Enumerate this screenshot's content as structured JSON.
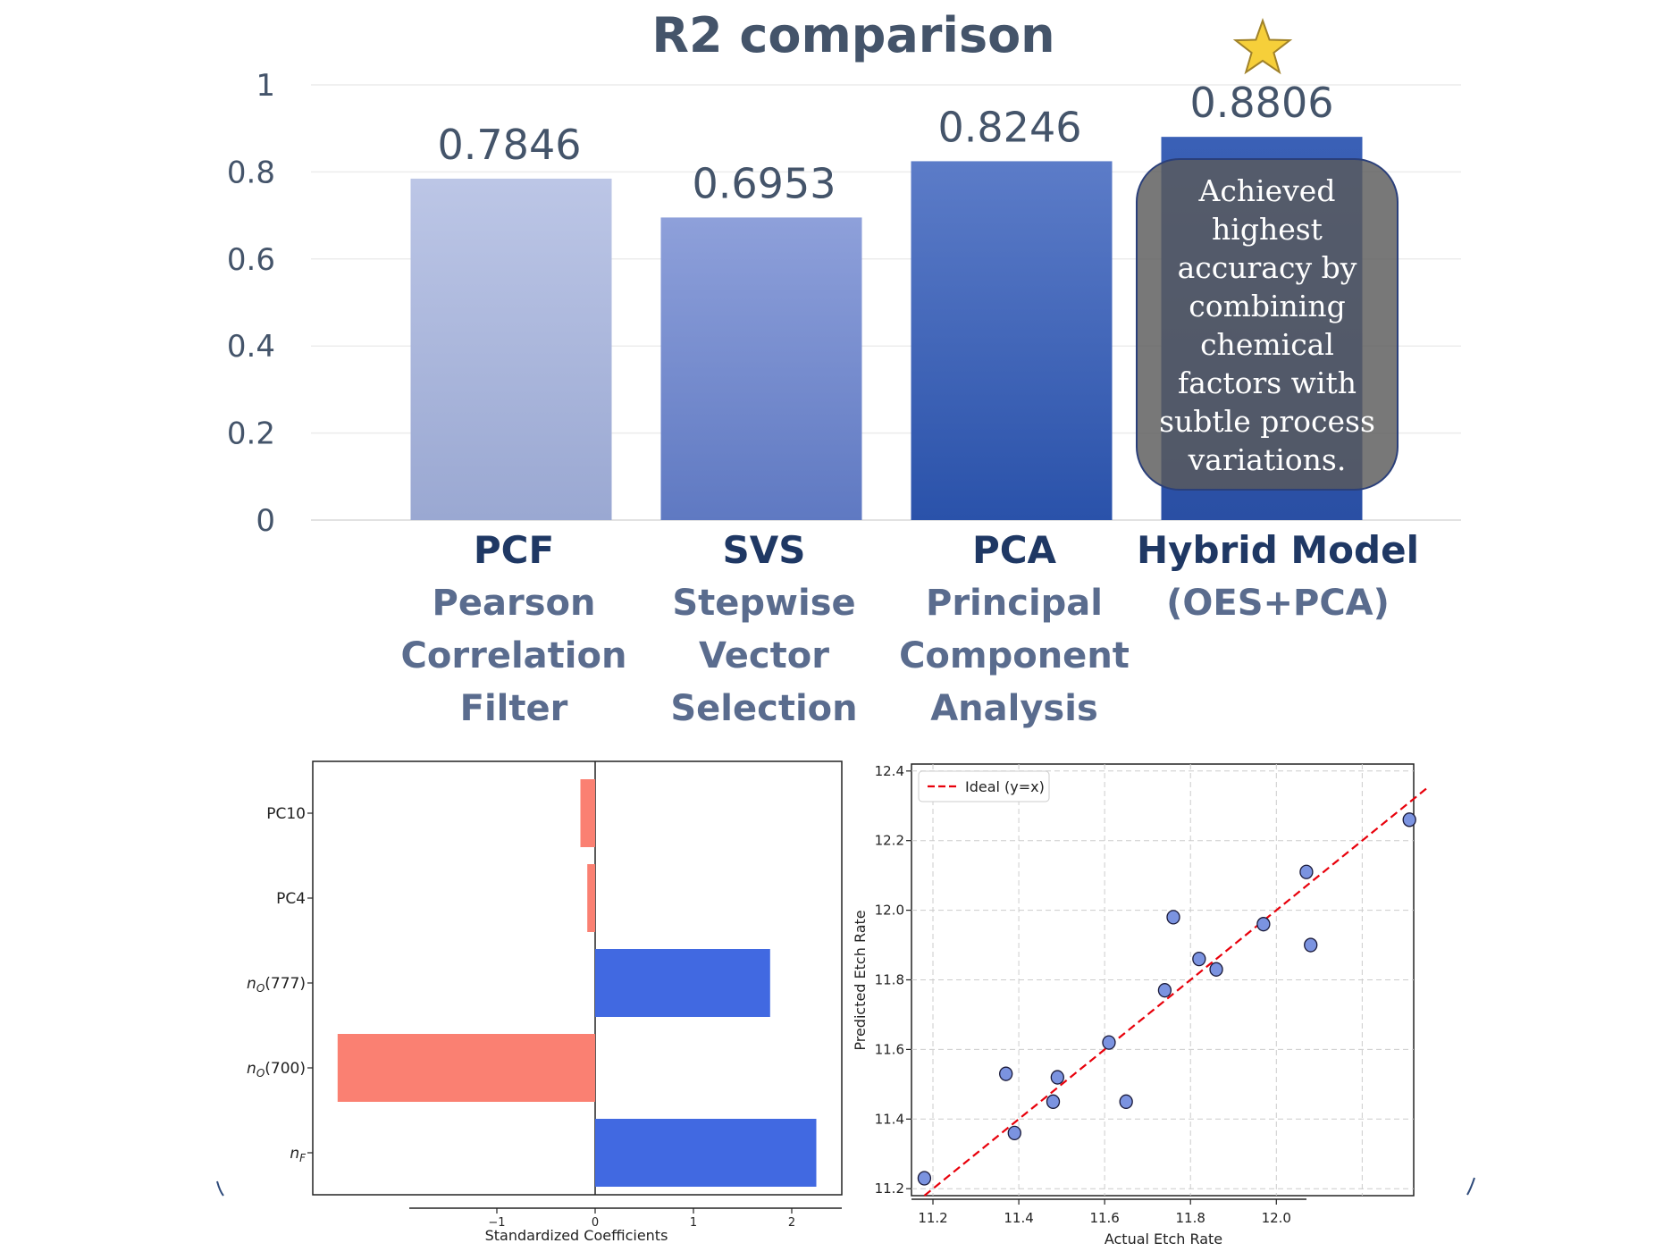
{
  "chart_data": [
    {
      "type": "bar",
      "title": "R2 comparison",
      "ylim": [
        0,
        1
      ],
      "yticks": [
        "0",
        "0.2",
        "0.4",
        "0.6",
        "0.8",
        "1"
      ],
      "ytick_values": [
        0,
        0.2,
        0.4,
        0.6,
        0.8,
        1
      ],
      "grid": true,
      "categories": [
        {
          "abbr": "PCF",
          "lines": [
            "Pearson",
            "Correlation",
            "Filter"
          ]
        },
        {
          "abbr": "SVS",
          "lines": [
            "Stepwise",
            "Vector",
            "Selection"
          ]
        },
        {
          "abbr": "PCA",
          "lines": [
            "Principal",
            "Component",
            "Analysis"
          ]
        },
        {
          "abbr": "Hybrid Model",
          "lines": [
            "(OES+PCA)"
          ]
        }
      ],
      "values": [
        0.7846,
        0.6953,
        0.8246,
        0.8806
      ],
      "value_labels": [
        "0.7846",
        "0.6953",
        "0.8246",
        "0.8806"
      ],
      "colors": [
        [
          "#bcc6e6",
          "#9aa8d2"
        ],
        [
          "#8ea0da",
          "#5f79c2"
        ],
        [
          "#5c7cc8",
          "#2a52aa"
        ],
        [
          "#3a60b6",
          "#2a4fa4"
        ]
      ],
      "annotation": {
        "icon": "star-icon",
        "lines": [
          "Achieved",
          "highest",
          "accuracy by",
          "combining",
          "chemical",
          "factors with",
          "subtle process",
          "variations."
        ]
      }
    },
    {
      "type": "bar",
      "orientation": "horizontal",
      "xlabel": "Standardized Coefficients",
      "xticks": [
        "−1",
        "0",
        "1",
        "2"
      ],
      "xtick_values": [
        -1,
        0,
        1,
        2
      ],
      "categories": [
        "PC10",
        "PC4",
        "nO(777)",
        "nO(700)",
        "nF"
      ],
      "values": [
        -0.15,
        -0.08,
        1.78,
        -2.62,
        2.25
      ],
      "colors": {
        "positive": "#4169e1",
        "negative": "#fa8072"
      }
    },
    {
      "type": "scatter",
      "xlabel": "Actual Etch Rate",
      "ylabel": "Predicted Etch Rate",
      "xticks": [
        "11.2",
        "11.4",
        "11.6",
        "11.8",
        "12.0"
      ],
      "xtick_values": [
        11.2,
        11.4,
        11.6,
        11.8,
        12.0
      ],
      "yticks": [
        "11.2",
        "11.4",
        "11.6",
        "11.8",
        "12.0",
        "12.2",
        "12.4"
      ],
      "ytick_values": [
        11.2,
        11.4,
        11.6,
        11.8,
        12.0,
        12.2,
        12.4
      ],
      "xlim": [
        11.15,
        12.32
      ],
      "ylim": [
        11.18,
        12.42
      ],
      "grid": true,
      "legend": {
        "label": "Ideal (y=x)",
        "placement": "top-left"
      },
      "ideal_line": [
        11.18,
        12.35
      ],
      "points": [
        {
          "x": 11.18,
          "y": 11.23
        },
        {
          "x": 11.37,
          "y": 11.53
        },
        {
          "x": 11.39,
          "y": 11.36
        },
        {
          "x": 11.48,
          "y": 11.45
        },
        {
          "x": 11.49,
          "y": 11.52
        },
        {
          "x": 11.61,
          "y": 11.62
        },
        {
          "x": 11.65,
          "y": 11.45
        },
        {
          "x": 11.74,
          "y": 11.77
        },
        {
          "x": 11.76,
          "y": 11.98
        },
        {
          "x": 11.82,
          "y": 11.86
        },
        {
          "x": 11.86,
          "y": 11.83
        },
        {
          "x": 11.97,
          "y": 11.96
        },
        {
          "x": 12.07,
          "y": 12.11
        },
        {
          "x": 12.08,
          "y": 11.9
        },
        {
          "x": 12.31,
          "y": 12.26
        }
      ],
      "point_color": "#7b93e0"
    }
  ]
}
